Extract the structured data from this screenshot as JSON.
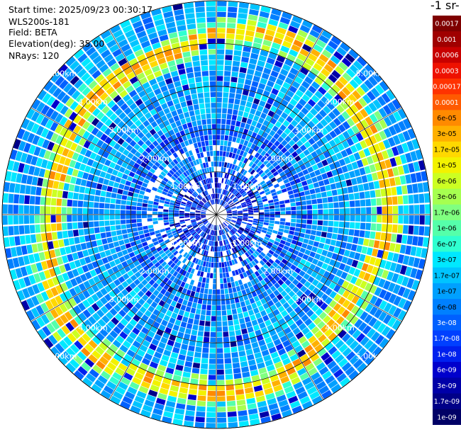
{
  "header": {
    "start_time": "Start time: 2025/09/23 00:30:17",
    "instrument": "WLS200s-181",
    "field": "Field: BETA",
    "elevation": "Elevation(deg): 35.00",
    "nrays": "NRays: 120"
  },
  "colorbar": {
    "title": "-1 sr-",
    "labels": [
      "0.0017",
      "0.001",
      "0.0006",
      "0.0003",
      "0.00017",
      "0.0001",
      "6e-05",
      "3e-05",
      "1.7e-05",
      "1e-05",
      "6e-06",
      "3e-06",
      "1.7e-06",
      "1e-06",
      "6e-07",
      "3e-07",
      "1.7e-07",
      "1e-07",
      "6e-08",
      "3e-08",
      "1.7e-08",
      "1e-08",
      "6e-09",
      "3e-09",
      "1.7e-09",
      "1e-09"
    ],
    "colors": [
      "#7f0000",
      "#a00000",
      "#c80000",
      "#ee1100",
      "#ff3300",
      "#ff5a00",
      "#ff8a00",
      "#ffb000",
      "#ffd800",
      "#f2f200",
      "#ccff22",
      "#a6ff50",
      "#80ff80",
      "#55ffaa",
      "#2fffd0",
      "#00e8ff",
      "#00c4ff",
      "#00a0ff",
      "#0080ff",
      "#0060ff",
      "#0040ff",
      "#0020ee",
      "#0000cc",
      "#0000a8",
      "#000088",
      "#000066"
    ]
  },
  "chart_data": {
    "type": "heatmap",
    "projection": "polar PPI",
    "nrays": 120,
    "elevation_deg": 35.0,
    "range_unit": "km",
    "ring_labels": [
      "1.00km",
      "2.00km",
      "3.00km",
      "4.00km",
      "5.00km"
    ],
    "ring_ranges_km": [
      1,
      2,
      3,
      4,
      5
    ],
    "max_range_km": 5.0,
    "field": "BETA",
    "colorbar_scale": "log",
    "value_range": [
      1e-09,
      0.0017
    ]
  }
}
